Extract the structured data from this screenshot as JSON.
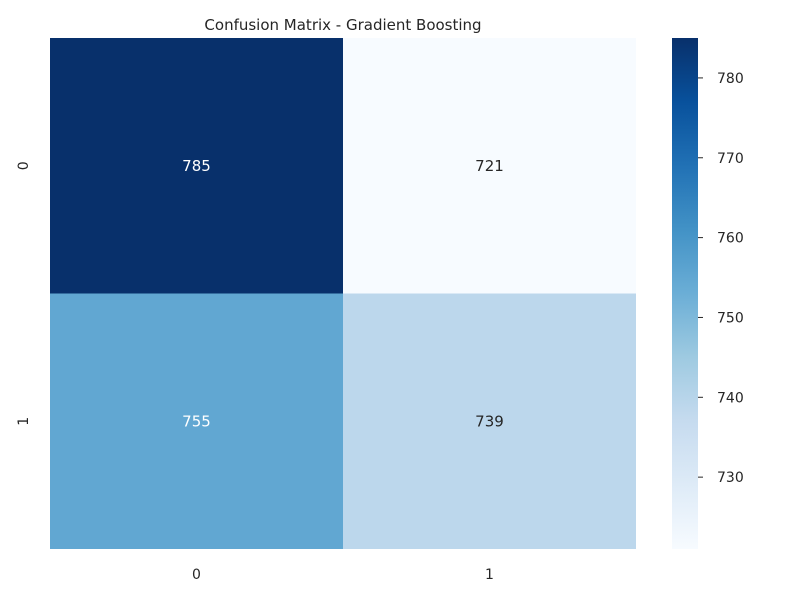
{
  "chart_data": {
    "type": "heatmap",
    "title": "Confusion Matrix - Gradient Boosting",
    "xlabel": "",
    "ylabel": "",
    "x_categories": [
      "0",
      "1"
    ],
    "y_categories": [
      "0",
      "1"
    ],
    "values": [
      [
        785,
        721
      ],
      [
        755,
        739
      ]
    ],
    "colormap": "Blues",
    "color_range": [
      721,
      785
    ],
    "colorbar_ticks": [
      "730",
      "740",
      "750",
      "760",
      "770",
      "780"
    ],
    "colorbar_tick_values": [
      730,
      740,
      750,
      760,
      770,
      780
    ],
    "colors": {
      "low": "#f7fbff",
      "high": "#08306b",
      "annotation_dark_bg": "#ffffff",
      "annotation_light_bg": "#262626"
    }
  }
}
